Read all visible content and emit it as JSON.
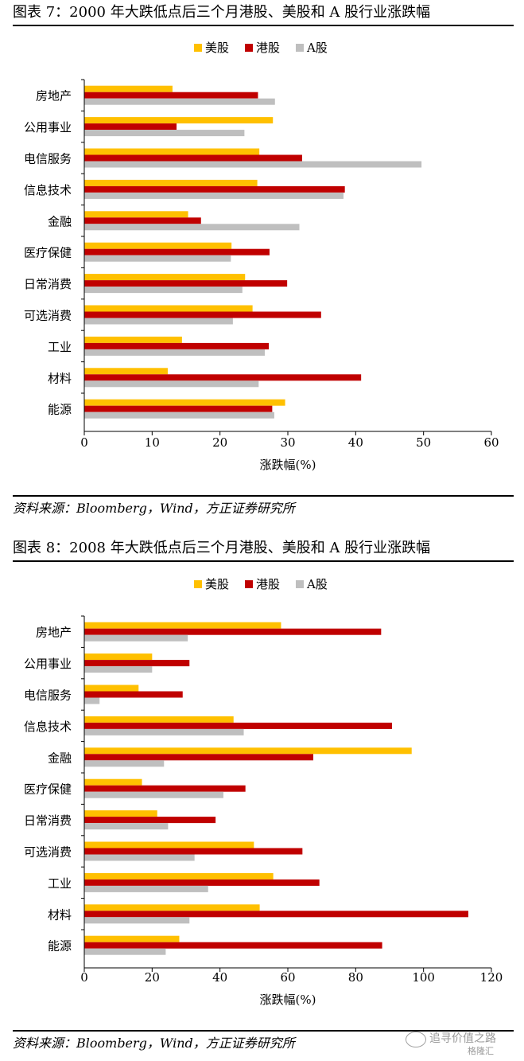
{
  "colors": {
    "us": "#FFC000",
    "hk": "#C00000",
    "a": "#BFBFBF"
  },
  "watermark": {
    "text": "追寻价值之路",
    "logo": "格隆汇"
  },
  "chart_data": [
    {
      "type": "bar",
      "orientation": "horizontal",
      "title": "图表 7：2000 年大跌低点后三个月港股、美股和 A 股行业涨跌幅",
      "source": "资料来源：Bloomberg，Wind，方正证券研究所",
      "xlabel": "涨跌幅(%)",
      "ylabel": "",
      "xlim": [
        0,
        60
      ],
      "xticks": [
        0,
        10,
        20,
        30,
        40,
        50,
        60
      ],
      "grid": false,
      "legend_position": "top",
      "categories": [
        "房地产",
        "公用事业",
        "电信服务",
        "信息技术",
        "金融",
        "医疗保健",
        "日常消费",
        "可选消费",
        "工业",
        "材料",
        "能源"
      ],
      "series": [
        {
          "name": "美股",
          "color": "#FFC000",
          "values": [
            13.0,
            27.8,
            25.8,
            25.5,
            15.3,
            21.7,
            23.7,
            24.8,
            14.4,
            12.3,
            29.6
          ]
        },
        {
          "name": "港股",
          "color": "#C00000",
          "values": [
            25.6,
            13.6,
            32.1,
            38.4,
            17.2,
            27.3,
            29.9,
            34.9,
            27.2,
            40.8,
            27.7
          ]
        },
        {
          "name": "A股",
          "color": "#BFBFBF",
          "values": [
            28.1,
            23.6,
            49.7,
            38.2,
            31.7,
            21.6,
            23.3,
            21.9,
            26.6,
            25.7,
            28.0
          ]
        }
      ]
    },
    {
      "type": "bar",
      "orientation": "horizontal",
      "title": "图表 8：2008 年大跌低点后三个月港股、美股和 A 股行业涨跌幅",
      "source": "资料来源：Bloomberg，Wind，方正证券研究所",
      "xlabel": "涨跌幅(%)",
      "ylabel": "",
      "xlim": [
        0,
        120
      ],
      "xticks": [
        0,
        20,
        40,
        60,
        80,
        100,
        120
      ],
      "grid": false,
      "legend_position": "top",
      "categories": [
        "房地产",
        "公用事业",
        "电信服务",
        "信息技术",
        "金融",
        "医疗保健",
        "日常消费",
        "可选消费",
        "工业",
        "材料",
        "能源"
      ],
      "series": [
        {
          "name": "美股",
          "color": "#FFC000",
          "values": [
            58.0,
            20.0,
            16.0,
            44.0,
            96.5,
            17.0,
            21.5,
            50.0,
            55.7,
            51.7,
            28.0
          ]
        },
        {
          "name": "港股",
          "color": "#C00000",
          "values": [
            87.5,
            31.0,
            29.0,
            90.7,
            67.5,
            47.5,
            38.7,
            64.3,
            69.3,
            113.2,
            87.8
          ]
        },
        {
          "name": "A股",
          "color": "#BFBFBF",
          "values": [
            30.5,
            20.0,
            4.5,
            47.0,
            23.5,
            41.0,
            24.7,
            32.5,
            36.5,
            31.0,
            24.0
          ]
        }
      ]
    }
  ]
}
